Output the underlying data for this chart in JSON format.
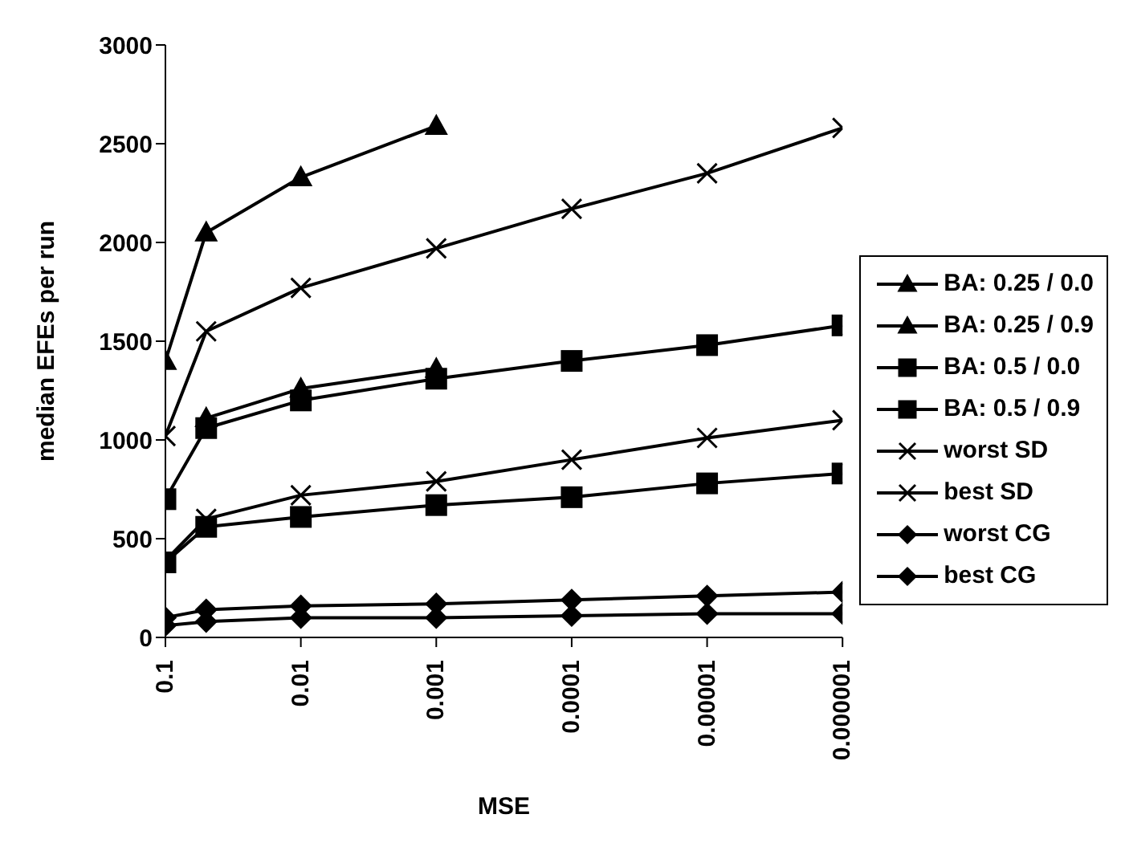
{
  "chart_data": {
    "type": "line",
    "xlabel": "MSE",
    "ylabel": "median EFEs per run",
    "log": "x",
    "x": [
      0.1,
      0.05,
      0.01,
      0.001,
      0.0001,
      1e-05,
      1e-06
    ],
    "xlim": [
      0.1,
      1e-06
    ],
    "xticks": [
      0.1,
      0.01,
      0.001,
      0.0001,
      {
        "value": 1e-05,
        "label": "0.00001"
      },
      {
        "value": 1e-06,
        "label": "0.000001"
      }
    ],
    "ylim": [
      0,
      3000
    ],
    "yticks": [
      0,
      500,
      1000,
      1500,
      2000,
      2500,
      3000
    ],
    "grid": false,
    "legend": "right",
    "line_style": "solid",
    "series": [
      {
        "name": "BA: 0.25 / 0.0",
        "color": "#000000",
        "marker": "triangle",
        "values": [
          1400,
          2050,
          2330,
          2590,
          null,
          null,
          null
        ]
      },
      {
        "name": "BA: 0.25 / 0.9",
        "color": "#000000",
        "marker": "triangle",
        "values": [
          null,
          1110,
          1260,
          1360,
          null,
          null,
          null
        ]
      },
      {
        "name": "BA: 0.5 / 0.0",
        "color": "#000000",
        "marker": "square",
        "values": [
          700,
          1060,
          1200,
          1310,
          1400,
          1480,
          1580
        ]
      },
      {
        "name": "BA: 0.5 / 0.9",
        "color": "#000000",
        "marker": "square",
        "values": [
          380,
          560,
          610,
          670,
          710,
          780,
          830
        ]
      },
      {
        "name": "worst SD",
        "color": "#000000",
        "marker": "cross",
        "values": [
          1020,
          1550,
          1770,
          1970,
          2170,
          2350,
          2580
        ]
      },
      {
        "name": "best SD",
        "color": "#000000",
        "marker": "cross",
        "values": [
          390,
          600,
          720,
          790,
          900,
          1010,
          1100
        ]
      },
      {
        "name": "worst CG",
        "color": "#000000",
        "marker": "diamond",
        "values": [
          100,
          140,
          160,
          170,
          190,
          210,
          230
        ]
      },
      {
        "name": "best CG",
        "color": "#000000",
        "marker": "diamond",
        "values": [
          60,
          80,
          100,
          100,
          110,
          120,
          120
        ]
      }
    ]
  }
}
